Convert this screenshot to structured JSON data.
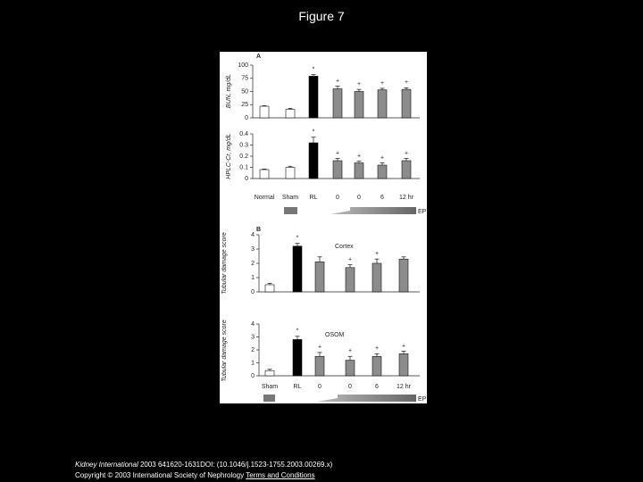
{
  "title": "Figure 7",
  "journal": "Kidney International",
  "citation": "2003 641620-1631DOI: (10.1046/j.1523-1755.2003.00269.x)",
  "copyright": "Copyright © 2003 International Society of Nephrology",
  "terms": "Terms and Conditions",
  "ep_label_a": "EP",
  "ep_label_b": "EP",
  "chart_data": [
    {
      "type": "bar",
      "panel": "A",
      "y_label": "BUN, mg/dL",
      "categories": [
        null,
        null,
        null,
        null,
        null,
        null,
        null
      ],
      "values": [
        22,
        16,
        79,
        55,
        50,
        53,
        54
      ],
      "errors": [
        1,
        2,
        3,
        5,
        4,
        3,
        3
      ],
      "significance": [
        null,
        null,
        "*",
        "+",
        "+",
        "+",
        "+"
      ],
      "colors": [
        "#ffffff",
        "#ffffff",
        "#000000",
        "#8c8c8c",
        "#8c8c8c",
        "#8c8c8c",
        "#8c8c8c"
      ],
      "ylim": [
        0,
        100
      ],
      "yticks": [
        0,
        25,
        50,
        75,
        100
      ]
    },
    {
      "type": "bar",
      "y_label": "HPLC-Cr, mg/dL",
      "categories": [
        "Normal",
        "Sham",
        "RL",
        "0",
        "0",
        "6",
        "12 hr"
      ],
      "values": [
        0.08,
        0.1,
        0.32,
        0.16,
        0.14,
        0.12,
        0.16
      ],
      "errors": [
        0.005,
        0.01,
        0.05,
        0.02,
        0.015,
        0.02,
        0.02
      ],
      "significance": [
        null,
        null,
        "*",
        "+",
        "+",
        "+",
        "+"
      ],
      "colors": [
        "#ffffff",
        "#ffffff",
        "#000000",
        "#8c8c8c",
        "#8c8c8c",
        "#8c8c8c",
        "#8c8c8c"
      ],
      "ylim": [
        0,
        0.4
      ],
      "yticks": [
        0,
        0.1,
        0.2,
        0.3,
        0.4
      ]
    },
    {
      "type": "bar",
      "panel": "B",
      "y_label": "Tubular damage score",
      "annotation": "Cortex",
      "categories": [
        null,
        null,
        null,
        null,
        null,
        null
      ],
      "values": [
        0.5,
        3.2,
        2.1,
        1.7,
        2.0,
        2.3
      ],
      "errors": [
        0.1,
        0.2,
        0.35,
        0.2,
        0.3,
        0.15
      ],
      "significance": [
        null,
        "*",
        null,
        "+",
        "+",
        null
      ],
      "colors": [
        "#ffffff",
        "#000000",
        "#8c8c8c",
        "#8c8c8c",
        "#8c8c8c",
        "#8c8c8c"
      ],
      "ylim": [
        0,
        4
      ],
      "yticks": [
        0,
        1,
        2,
        3,
        4
      ]
    },
    {
      "type": "bar",
      "y_label": "Tubular damage score",
      "annotation": "OSOM",
      "categories": [
        "Sham",
        "RL",
        "0",
        "0",
        "6",
        "12 hr"
      ],
      "values": [
        0.4,
        2.8,
        1.5,
        1.2,
        1.5,
        1.7
      ],
      "errors": [
        0.1,
        0.25,
        0.3,
        0.3,
        0.2,
        0.2
      ],
      "significance": [
        null,
        "*",
        "+",
        "+",
        "+",
        "+"
      ],
      "colors": [
        "#ffffff",
        "#000000",
        "#8c8c8c",
        "#8c8c8c",
        "#8c8c8c",
        "#8c8c8c"
      ],
      "ylim": [
        0,
        4
      ],
      "yticks": [
        0,
        1,
        2,
        3,
        4
      ]
    }
  ]
}
